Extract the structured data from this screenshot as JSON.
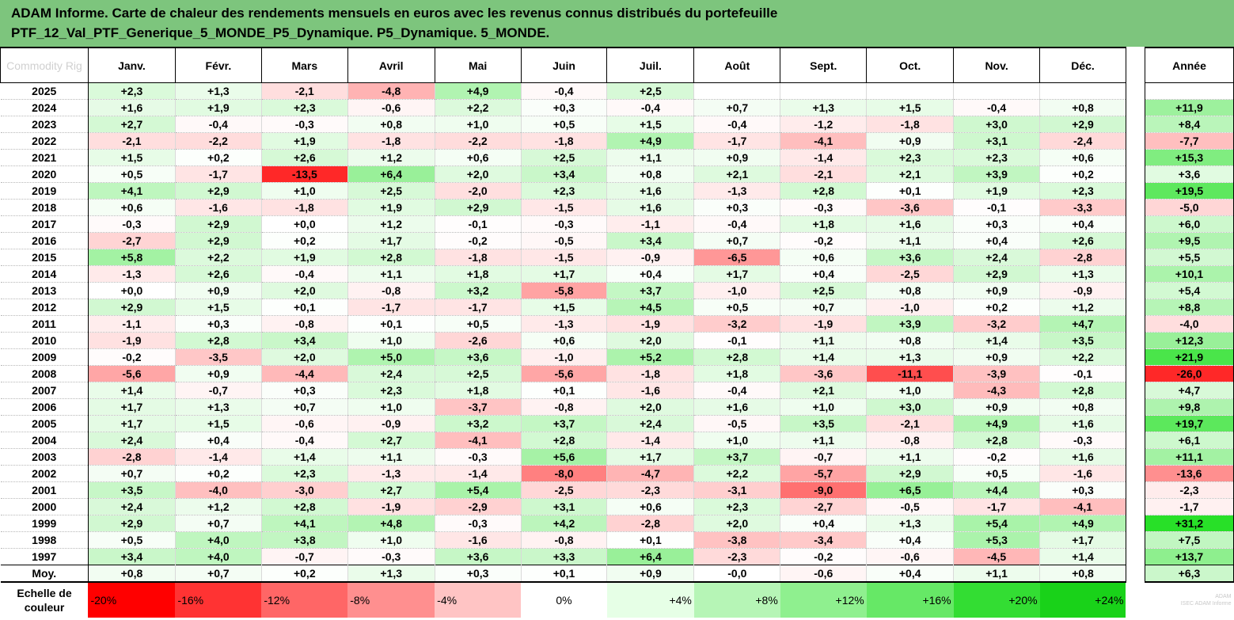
{
  "title": {
    "line1": "ADAM Informe. Carte de chaleur des rendements mensuels en euros avec les revenus connus distribués du portefeuille",
    "line2": "PTF_12_Val_PTF_Generique_5_MONDE_P5_Dynamique. P5_Dynamique. 5_MONDE."
  },
  "corner_label": "Commodity Rig",
  "months": [
    "Janv.",
    "Févr.",
    "Mars",
    "Avril",
    "Mai",
    "Juin",
    "Juil.",
    "Août",
    "Sept.",
    "Oct.",
    "Nov.",
    "Déc."
  ],
  "year_header": "Année",
  "rows": [
    {
      "year": "2025",
      "values": [
        "+2,3",
        "+1,3",
        "-2,1",
        "-4,8",
        "+4,9",
        "-0,4",
        "+2,5",
        "",
        "",
        "",
        "",
        ""
      ],
      "total": ""
    },
    {
      "year": "2024",
      "values": [
        "+1,6",
        "+1,9",
        "+2,3",
        "-0,6",
        "+2,2",
        "+0,3",
        "-0,4",
        "+0,7",
        "+1,3",
        "+1,5",
        "-0,4",
        "+0,8"
      ],
      "total": "+11,9"
    },
    {
      "year": "2023",
      "values": [
        "+2,7",
        "-0,4",
        "-0,3",
        "+0,8",
        "+1,0",
        "+0,5",
        "+1,5",
        "-0,4",
        "-1,2",
        "-1,8",
        "+3,0",
        "+2,9"
      ],
      "total": "+8,4"
    },
    {
      "year": "2022",
      "values": [
        "-2,1",
        "-2,2",
        "+1,9",
        "-1,8",
        "-2,2",
        "-1,8",
        "+4,9",
        "-1,7",
        "-4,1",
        "+0,9",
        "+3,1",
        "-2,4"
      ],
      "total": "-7,7"
    },
    {
      "year": "2021",
      "values": [
        "+1,5",
        "+0,2",
        "+2,6",
        "+1,2",
        "+0,6",
        "+2,5",
        "+1,1",
        "+0,9",
        "-1,4",
        "+2,3",
        "+2,3",
        "+0,6"
      ],
      "total": "+15,3"
    },
    {
      "year": "2020",
      "values": [
        "+0,5",
        "-1,7",
        "-13,5",
        "+6,4",
        "+2,0",
        "+3,4",
        "+0,8",
        "+2,1",
        "-2,1",
        "+2,1",
        "+3,9",
        "+0,2"
      ],
      "total": "+3,6"
    },
    {
      "year": "2019",
      "values": [
        "+4,1",
        "+2,9",
        "+1,0",
        "+2,5",
        "-2,0",
        "+2,3",
        "+1,6",
        "-1,3",
        "+2,8",
        "+0,1",
        "+1,9",
        "+2,3"
      ],
      "total": "+19,5"
    },
    {
      "year": "2018",
      "values": [
        "+0,6",
        "-1,6",
        "-1,8",
        "+1,9",
        "+2,9",
        "-1,5",
        "+1,6",
        "+0,3",
        "-0,3",
        "-3,6",
        "-0,1",
        "-3,3"
      ],
      "total": "-5,0"
    },
    {
      "year": "2017",
      "values": [
        "-0,3",
        "+2,9",
        "+0,0",
        "+1,2",
        "-0,1",
        "-0,3",
        "-1,1",
        "-0,4",
        "+1,8",
        "+1,6",
        "+0,3",
        "+0,4"
      ],
      "total": "+6,0"
    },
    {
      "year": "2016",
      "values": [
        "-2,7",
        "+2,9",
        "+0,2",
        "+1,7",
        "-0,2",
        "-0,5",
        "+3,4",
        "+0,7",
        "-0,2",
        "+1,1",
        "+0,4",
        "+2,6"
      ],
      "total": "+9,5"
    },
    {
      "year": "2015",
      "values": [
        "+5,8",
        "+2,2",
        "+1,9",
        "+2,8",
        "-1,8",
        "-1,5",
        "-0,9",
        "-6,5",
        "+0,6",
        "+3,6",
        "+2,4",
        "-2,8"
      ],
      "total": "+5,5"
    },
    {
      "year": "2014",
      "values": [
        "-1,3",
        "+2,6",
        "-0,4",
        "+1,1",
        "+1,8",
        "+1,7",
        "+0,4",
        "+1,7",
        "+0,4",
        "-2,5",
        "+2,9",
        "+1,3"
      ],
      "total": "+10,1"
    },
    {
      "year": "2013",
      "values": [
        "+0,0",
        "+0,9",
        "+2,0",
        "-0,8",
        "+3,2",
        "-5,8",
        "+3,7",
        "-1,0",
        "+2,5",
        "+0,8",
        "+0,9",
        "-0,9"
      ],
      "total": "+5,4"
    },
    {
      "year": "2012",
      "values": [
        "+2,9",
        "+1,5",
        "+0,1",
        "-1,7",
        "-1,7",
        "+1,5",
        "+4,5",
        "+0,5",
        "+0,7",
        "-1,0",
        "+0,2",
        "+1,2"
      ],
      "total": "+8,8"
    },
    {
      "year": "2011",
      "values": [
        "-1,1",
        "+0,3",
        "-0,8",
        "+0,1",
        "+0,5",
        "-1,3",
        "-1,9",
        "-3,2",
        "-1,9",
        "+3,9",
        "-3,2",
        "+4,7"
      ],
      "total": "-4,0"
    },
    {
      "year": "2010",
      "values": [
        "-1,9",
        "+2,8",
        "+3,4",
        "+1,0",
        "-2,6",
        "+0,6",
        "+2,0",
        "-0,1",
        "+1,1",
        "+0,8",
        "+1,4",
        "+3,5"
      ],
      "total": "+12,3"
    },
    {
      "year": "2009",
      "values": [
        "-0,2",
        "-3,5",
        "+2,0",
        "+5,0",
        "+3,6",
        "-1,0",
        "+5,2",
        "+2,8",
        "+1,4",
        "+1,3",
        "+0,9",
        "+2,2"
      ],
      "total": "+21,9"
    },
    {
      "year": "2008",
      "values": [
        "-5,6",
        "+0,9",
        "-4,4",
        "+2,4",
        "+2,5",
        "-5,6",
        "-1,8",
        "+1,8",
        "-3,6",
        "-11,1",
        "-3,9",
        "-0,1"
      ],
      "total": "-26,0"
    },
    {
      "year": "2007",
      "values": [
        "+1,4",
        "-0,7",
        "+0,3",
        "+2,3",
        "+1,8",
        "+0,1",
        "-1,6",
        "-0,4",
        "+2,1",
        "+1,0",
        "-4,3",
        "+2,8"
      ],
      "total": "+4,7"
    },
    {
      "year": "2006",
      "values": [
        "+1,7",
        "+1,3",
        "+0,7",
        "+1,0",
        "-3,7",
        "-0,8",
        "+2,0",
        "+1,6",
        "+1,0",
        "+3,0",
        "+0,9",
        "+0,8"
      ],
      "total": "+9,8"
    },
    {
      "year": "2005",
      "values": [
        "+1,7",
        "+1,5",
        "-0,6",
        "-0,9",
        "+3,2",
        "+3,7",
        "+2,4",
        "-0,5",
        "+3,5",
        "-2,1",
        "+4,9",
        "+1,6"
      ],
      "total": "+19,7"
    },
    {
      "year": "2004",
      "values": [
        "+2,4",
        "+0,4",
        "-0,4",
        "+2,7",
        "-4,1",
        "+2,8",
        "-1,4",
        "+1,0",
        "+1,1",
        "-0,8",
        "+2,8",
        "-0,3"
      ],
      "total": "+6,1"
    },
    {
      "year": "2003",
      "values": [
        "-2,8",
        "-1,4",
        "+1,4",
        "+1,1",
        "-0,3",
        "+5,6",
        "+1,7",
        "+3,7",
        "-0,7",
        "+1,1",
        "-0,2",
        "+1,6"
      ],
      "total": "+11,1"
    },
    {
      "year": "2002",
      "values": [
        "+0,7",
        "+0,2",
        "+2,3",
        "-1,3",
        "-1,4",
        "-8,0",
        "-4,7",
        "+2,2",
        "-5,7",
        "+2,9",
        "+0,5",
        "-1,6"
      ],
      "total": "-13,6"
    },
    {
      "year": "2001",
      "values": [
        "+3,5",
        "-4,0",
        "-3,0",
        "+2,7",
        "+5,4",
        "-2,5",
        "-2,3",
        "-3,1",
        "-9,0",
        "+6,5",
        "+4,4",
        "+0,3"
      ],
      "total": "-2,3"
    },
    {
      "year": "2000",
      "values": [
        "+2,4",
        "+1,2",
        "+2,8",
        "-1,9",
        "-2,9",
        "+3,1",
        "+0,6",
        "+2,3",
        "-2,7",
        "-0,5",
        "-1,7",
        "-4,1"
      ],
      "total": "-1,7"
    },
    {
      "year": "1999",
      "values": [
        "+2,9",
        "+0,7",
        "+4,1",
        "+4,8",
        "-0,3",
        "+4,2",
        "-2,8",
        "+2,0",
        "+0,4",
        "+1,3",
        "+5,4",
        "+4,9"
      ],
      "total": "+31,2"
    },
    {
      "year": "1998",
      "values": [
        "+0,5",
        "+4,0",
        "+3,8",
        "+1,0",
        "-1,6",
        "-0,8",
        "+0,1",
        "-3,8",
        "-3,4",
        "+0,4",
        "+5,3",
        "+1,7"
      ],
      "total": "+7,5"
    },
    {
      "year": "1997",
      "values": [
        "+3,4",
        "+4,0",
        "-0,7",
        "-0,3",
        "+3,6",
        "+3,3",
        "+6,4",
        "-2,3",
        "-0,2",
        "-0,6",
        "-4,5",
        "+1,4"
      ],
      "total": "+13,7"
    }
  ],
  "average": {
    "label": "Moy.",
    "values": [
      "+0,8",
      "+0,7",
      "+0,2",
      "+1,3",
      "+0,3",
      "+0,1",
      "+0,9",
      "-0,0",
      "-0,6",
      "+0,4",
      "+1,1",
      "+0,8"
    ],
    "total": "+6,3"
  },
  "scale": {
    "label_line1": "Echelle de",
    "label_line2": "couleur",
    "steps": [
      "-20%",
      "-16%",
      "-12%",
      "-8%",
      "-4%",
      "0%",
      "+4%",
      "+8%",
      "+12%",
      "+16%",
      "+20%",
      "+24%"
    ],
    "colors": [
      "#ff0000",
      "#ff3333",
      "#ff6666",
      "#ff8f8f",
      "#ffc4c4",
      "#ffffff",
      "#e6ffe6",
      "#b6f5b6",
      "#8ff08f",
      "#66e866",
      "#33dd33",
      "#19d219"
    ],
    "watermark_line1": "ADAM",
    "watermark_line2": "ISEC ADAM Informe"
  },
  "colors": {
    "header_bg": "#7dc57d",
    "negative_full": "#ff2a2a",
    "positive_full": "#28e028"
  }
}
